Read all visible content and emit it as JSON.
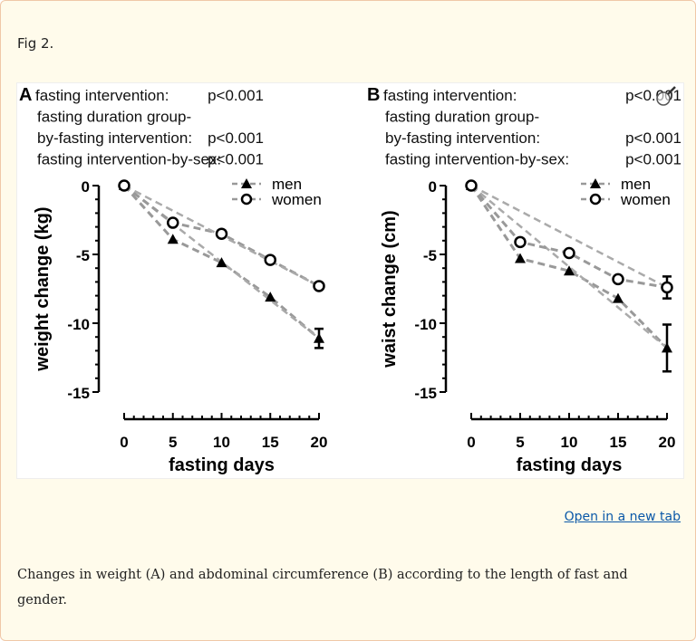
{
  "figure_label": "Fig 2.",
  "open_link": "Open in a new tab",
  "caption": "Changes in weight (A) and abdominal circumference (B) according to the length of fast and gender.",
  "colors": {
    "marker": "#000000",
    "line": "#999999",
    "link": "#0a58a8",
    "page_bg": "#fffbeb"
  },
  "overlay_icon": "magnifier-icon",
  "chart_data": [
    {
      "type": "line",
      "panel": "A",
      "stats": [
        {
          "label": "fasting intervention:",
          "p": "p<0.001"
        },
        {
          "label": "fasting duration group-",
          "p": ""
        },
        {
          "label": "by-fasting intervention:",
          "p": "p<0.001"
        },
        {
          "label": "fasting intervention-by-sex:",
          "p": "p<0.001"
        }
      ],
      "xlabel": "fasting days",
      "ylabel": "weight change (kg)",
      "x": [
        0,
        5,
        10,
        15,
        20
      ],
      "xticks": [
        "0",
        "5",
        "10",
        "15",
        "20"
      ],
      "yticks": [
        "0",
        "-5",
        "-10",
        "-15"
      ],
      "ylim": [
        -15,
        0
      ],
      "xlim": [
        0,
        20
      ],
      "legend": "top-right",
      "grid": false,
      "series": [
        {
          "name": "men",
          "marker": "triangle",
          "values": [
            0,
            -3.9,
            -5.6,
            -8.1,
            -11.1
          ],
          "error_last": 0.7
        },
        {
          "name": "women",
          "marker": "open-circle",
          "values": [
            0,
            -2.7,
            -3.5,
            -5.4,
            -7.3
          ],
          "error_last": 0
        }
      ]
    },
    {
      "type": "line",
      "panel": "B",
      "stats": [
        {
          "label": "fasting intervention:",
          "p": "p<0.001"
        },
        {
          "label": "fasting duration group-",
          "p": ""
        },
        {
          "label": "by-fasting intervention:",
          "p": "p<0.001"
        },
        {
          "label": "fasting intervention-by-sex:",
          "p": "p<0.001"
        }
      ],
      "xlabel": "fasting days",
      "ylabel": "waist change (cm)",
      "x": [
        0,
        5,
        10,
        15,
        20
      ],
      "xticks": [
        "0",
        "5",
        "10",
        "15",
        "20"
      ],
      "yticks": [
        "0",
        "-5",
        "-10",
        "-15"
      ],
      "ylim": [
        -15,
        0
      ],
      "xlim": [
        0,
        20
      ],
      "legend": "top-right",
      "grid": false,
      "series": [
        {
          "name": "men",
          "marker": "triangle",
          "values": [
            0,
            -5.3,
            -6.2,
            -8.2,
            -11.8
          ],
          "error_last": 1.7
        },
        {
          "name": "women",
          "marker": "open-circle",
          "values": [
            0,
            -4.1,
            -4.9,
            -6.8,
            -7.4
          ],
          "error_last": 0.8
        }
      ]
    }
  ]
}
